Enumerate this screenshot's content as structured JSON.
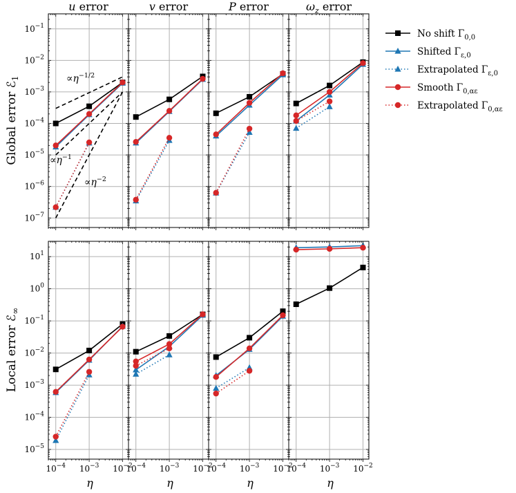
{
  "chart_data": [
    {
      "type": "line",
      "panel": "global-u",
      "title": "u error",
      "ylabel": "Global error ℰ₁",
      "yscale": "log",
      "ylim": [
        5e-08,
        0.3
      ],
      "xscale": "log",
      "x": [
        0.0001,
        0.001,
        0.01
      ],
      "series": [
        {
          "name": "No shift Γ0,0",
          "values": [
            0.0001,
            0.00035,
            0.002
          ]
        },
        {
          "name": "Shifted Γε,0",
          "values": [
            1.8e-05,
            0.00019,
            0.0019
          ]
        },
        {
          "name": "Extrapolated Γε,0",
          "values": [
            2.2e-07,
            2.4e-05,
            null
          ]
        },
        {
          "name": "Smooth Γ0,αε",
          "values": [
            2e-05,
            0.0002,
            0.002
          ]
        },
        {
          "name": "Extrapolated Γ0,αε",
          "values": [
            2.2e-07,
            2.5e-05,
            null
          ]
        }
      ],
      "annotations": [
        {
          "label": "∝η^{-1/2}",
          "line": [
            [
              0.0001,
              0.0003
            ],
            [
              0.01,
              0.003
            ]
          ]
        },
        {
          "label": "∝η^{-1}",
          "line": [
            [
              0.0001,
              1e-05
            ],
            [
              0.01,
              0.001
            ]
          ]
        },
        {
          "label": "∝η^{-2}",
          "line": [
            [
              0.0001,
              1e-07
            ],
            [
              0.01,
              0.001
            ]
          ]
        }
      ]
    },
    {
      "type": "line",
      "panel": "global-v",
      "title": "v error",
      "yscale": "log",
      "ylim": [
        5e-08,
        0.3
      ],
      "xscale": "log",
      "x": [
        0.0001,
        0.001,
        0.01
      ],
      "series": [
        {
          "name": "No shift Γ0,0",
          "values": [
            0.00016,
            0.00058,
            0.0031
          ]
        },
        {
          "name": "Shifted Γε,0",
          "values": [
            2.4e-05,
            0.00024,
            0.0025
          ]
        },
        {
          "name": "Extrapolated Γε,0",
          "values": [
            3.5e-07,
            2.9e-05,
            null
          ]
        },
        {
          "name": "Smooth Γ0,αε",
          "values": [
            2.6e-05,
            0.00025,
            0.0026
          ]
        },
        {
          "name": "Extrapolated Γ0,αε",
          "values": [
            3.8e-07,
            3.5e-05,
            null
          ]
        }
      ]
    },
    {
      "type": "line",
      "panel": "global-P",
      "title": "P error",
      "yscale": "log",
      "ylim": [
        5e-08,
        0.3
      ],
      "xscale": "log",
      "x": [
        0.0001,
        0.001,
        0.01
      ],
      "series": [
        {
          "name": "No shift Γ0,0",
          "values": [
            0.00021,
            0.0007,
            0.0037
          ]
        },
        {
          "name": "Shifted Γε,0",
          "values": [
            4e-05,
            0.00038,
            0.0035
          ]
        },
        {
          "name": "Extrapolated Γε,0",
          "values": [
            6.2e-07,
            5.2e-05,
            null
          ]
        },
        {
          "name": "Smooth Γ0,αε",
          "values": [
            4.5e-05,
            0.00045,
            0.0039
          ]
        },
        {
          "name": "Extrapolated Γ0,αε",
          "values": [
            6.3e-07,
            6.8e-05,
            null
          ]
        }
      ]
    },
    {
      "type": "line",
      "panel": "global-wz",
      "title": "ωz error",
      "yscale": "log",
      "ylim": [
        5e-08,
        0.3
      ],
      "xscale": "log",
      "x": [
        0.0001,
        0.001,
        0.01
      ],
      "series": [
        {
          "name": "No shift Γ0,0",
          "values": [
            0.00043,
            0.0016,
            0.0088
          ]
        },
        {
          "name": "Shifted Γε,0",
          "values": [
            0.00012,
            0.0008,
            0.0075
          ]
        },
        {
          "name": "Extrapolated Γε,0",
          "values": [
            7e-05,
            0.00034,
            null
          ]
        },
        {
          "name": "Smooth Γ0,αε",
          "values": [
            0.00018,
            0.001,
            0.0082
          ]
        },
        {
          "name": "Extrapolated Γ0,αε",
          "values": [
            0.00012,
            0.0005,
            null
          ]
        }
      ]
    },
    {
      "type": "line",
      "panel": "local-u",
      "ylabel": "Local error ℰ∞",
      "xlabel": "η",
      "yscale": "log",
      "ylim": [
        5e-06,
        30
      ],
      "xscale": "log",
      "x": [
        0.0001,
        0.001,
        0.01
      ],
      "series": [
        {
          "name": "No shift Γ0,0",
          "values": [
            0.0031,
            0.012,
            0.08
          ]
        },
        {
          "name": "Shifted Γε,0",
          "values": [
            0.00059,
            0.006,
            0.068
          ]
        },
        {
          "name": "Extrapolated Γε,0",
          "values": [
            1.9e-05,
            0.0021,
            null
          ]
        },
        {
          "name": "Smooth Γ0,αε",
          "values": [
            0.00062,
            0.0063,
            0.066
          ]
        },
        {
          "name": "Extrapolated Γ0,αε",
          "values": [
            2.5e-05,
            0.0026,
            null
          ]
        }
      ]
    },
    {
      "type": "line",
      "panel": "local-v",
      "xlabel": "η",
      "yscale": "log",
      "ylim": [
        5e-06,
        30
      ],
      "xscale": "log",
      "x": [
        0.0001,
        0.001,
        0.01
      ],
      "series": [
        {
          "name": "No shift Γ0,0",
          "values": [
            0.011,
            0.034,
            0.16
          ]
        },
        {
          "name": "Shifted Γε,0",
          "values": [
            0.003,
            0.016,
            0.15
          ]
        },
        {
          "name": "Extrapolated Γε,0",
          "values": [
            0.0022,
            0.0088,
            null
          ]
        },
        {
          "name": "Smooth Γ0,αε",
          "values": [
            0.0055,
            0.019,
            0.16
          ]
        },
        {
          "name": "Extrapolated Γ0,αε",
          "values": [
            0.004,
            0.014,
            null
          ]
        }
      ]
    },
    {
      "type": "line",
      "panel": "local-P",
      "xlabel": "η",
      "yscale": "log",
      "ylim": [
        5e-06,
        30
      ],
      "xscale": "log",
      "x": [
        0.0001,
        0.001,
        0.01
      ],
      "series": [
        {
          "name": "No shift Γ0,0",
          "values": [
            0.0075,
            0.03,
            0.2
          ]
        },
        {
          "name": "Shifted Γε,0",
          "values": [
            0.002,
            0.013,
            0.14
          ]
        },
        {
          "name": "Extrapolated Γε,0",
          "values": [
            0.0008,
            0.0035,
            null
          ]
        },
        {
          "name": "Smooth Γ0,αε",
          "values": [
            0.0018,
            0.014,
            0.15
          ]
        },
        {
          "name": "Extrapolated Γ0,αε",
          "values": [
            0.00055,
            0.0028,
            null
          ]
        }
      ]
    },
    {
      "type": "line",
      "panel": "local-wz",
      "xlabel": "η",
      "yscale": "log",
      "ylim": [
        5e-06,
        30
      ],
      "xscale": "log",
      "x": [
        0.0001,
        0.001,
        0.01
      ],
      "series": [
        {
          "name": "No shift Γ0,0",
          "values": [
            0.33,
            1.05,
            4.6
          ]
        },
        {
          "name": "Shifted Γε,0",
          "values": [
            19,
            20,
            22
          ]
        },
        {
          "name": "Extrapolated Γε,0",
          "values": [
            null,
            null,
            null
          ]
        },
        {
          "name": "Smooth Γ0,αε",
          "values": [
            16.5,
            17.5,
            19
          ]
        },
        {
          "name": "Extrapolated Γ0,αε",
          "values": [
            null,
            null,
            null
          ]
        }
      ]
    }
  ],
  "legend": {
    "position": "top-right, outside",
    "items": [
      {
        "label": "No shift Γ",
        "sub": "0,0",
        "color": "#000000",
        "marker": "square",
        "dash": "solid"
      },
      {
        "label": "Shifted Γ",
        "sub": "ε,0",
        "color": "#1f77b4",
        "marker": "triangle",
        "dash": "solid"
      },
      {
        "label": "Extrapolated Γ",
        "sub": "ε,0",
        "color": "#1f77b4",
        "marker": "triangle",
        "dash": "dotted"
      },
      {
        "label": "Smooth Γ",
        "sub": "0,αε",
        "color": "#d62728",
        "marker": "circle",
        "dash": "solid"
      },
      {
        "label": "Extrapolated Γ",
        "sub": "0,αε",
        "color": "#d62728",
        "marker": "circle",
        "dash": "dotted"
      }
    ]
  },
  "text": {
    "titles": [
      {
        "sym": "u",
        "word": " error"
      },
      {
        "sym": "v",
        "word": " error"
      },
      {
        "sym": "P",
        "word": " error"
      },
      {
        "sym": "ω",
        "sub": "z",
        "word": " error"
      }
    ],
    "xlabel": "η",
    "ylabel_global": {
      "main": "Global error ℰ",
      "sub": "1"
    },
    "ylabel_local": {
      "main": "Local error ℰ",
      "sub": "∞"
    },
    "ytick_base": "10",
    "global_ytick_exps": [
      "−7",
      "−6",
      "−5",
      "−4",
      "−3",
      "−2",
      "−1"
    ],
    "local_ytick_exps": [
      "−5",
      "−4",
      "−3",
      "−2",
      "−1",
      "0",
      "1"
    ],
    "xtick_exps": [
      "−4",
      "−3",
      "−2"
    ],
    "slope_labels": [
      {
        "pre": "∝η",
        "sup": "−1/2"
      },
      {
        "pre": "∝η",
        "sup": "−1"
      },
      {
        "pre": "∝η",
        "sup": "−2"
      }
    ]
  },
  "colors": {
    "black": "#000000",
    "blue": "#1f77b4",
    "red": "#d62728",
    "grid": "#b0b0b0"
  }
}
